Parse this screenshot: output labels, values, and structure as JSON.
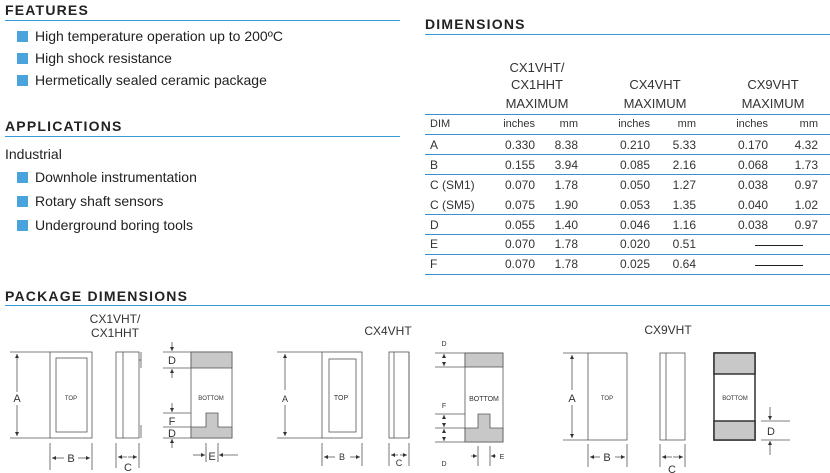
{
  "features": {
    "heading": "FEATURES",
    "items": [
      "High temperature operation up to 200ºC",
      "High shock resistance",
      "Hermetically sealed ceramic package"
    ]
  },
  "applications": {
    "heading": "APPLICATIONS",
    "subheading": "Industrial",
    "items": [
      "Downhole instrumentation",
      "Rotary shaft sensors",
      "Underground boring tools"
    ]
  },
  "dimensions": {
    "heading": "DIMENSIONS",
    "columns": [
      {
        "name_line1": "CX1VHT/",
        "name_line2": "CX1HHT",
        "qualifier": "MAXIMUM"
      },
      {
        "name_line1": "",
        "name_line2": "CX4VHT",
        "qualifier": "MAXIMUM"
      },
      {
        "name_line1": "",
        "name_line2": "CX9VHT",
        "qualifier": "MAXIMUM"
      }
    ],
    "units": {
      "dim": "DIM",
      "inches": "inches",
      "mm": "mm"
    },
    "rows": [
      {
        "dim": "A",
        "v": [
          "0.330",
          "8.38",
          "0.210",
          "5.33",
          "0.170",
          "4.32"
        ]
      },
      {
        "dim": "B",
        "v": [
          "0.155",
          "3.94",
          "0.085",
          "2.16",
          "0.068",
          "1.73"
        ]
      },
      {
        "dim": "C (SM1)",
        "v": [
          "0.070",
          "1.78",
          "0.050",
          "1.27",
          "0.038",
          "0.97"
        ]
      },
      {
        "dim": "C (SM5)",
        "v": [
          "0.075",
          "1.90",
          "0.053",
          "1.35",
          "0.040",
          "1.02"
        ]
      },
      {
        "dim": "D",
        "v": [
          "0.055",
          "1.40",
          "0.046",
          "1.16",
          "0.038",
          "0.97"
        ]
      },
      {
        "dim": "E",
        "v": [
          "0.070",
          "1.78",
          "0.020",
          "0.51",
          "",
          ""
        ]
      },
      {
        "dim": "F",
        "v": [
          "0.070",
          "1.78",
          "0.025",
          "0.64",
          "",
          ""
        ]
      }
    ]
  },
  "package": {
    "heading": "PACKAGE DIMENSIONS",
    "cx1_line1": "CX1VHT/",
    "cx1_line2": "CX1HHT",
    "cx4": "CX4VHT",
    "cx9": "CX9VHT",
    "labels": {
      "top": "TOP",
      "bottom": "BOTTOM",
      "a": "A",
      "b": "B",
      "c": "C",
      "d": "D",
      "e": "E",
      "f": "F"
    }
  },
  "colors": {
    "accent": "#4aa3da",
    "pad": "#c8c8c8"
  }
}
